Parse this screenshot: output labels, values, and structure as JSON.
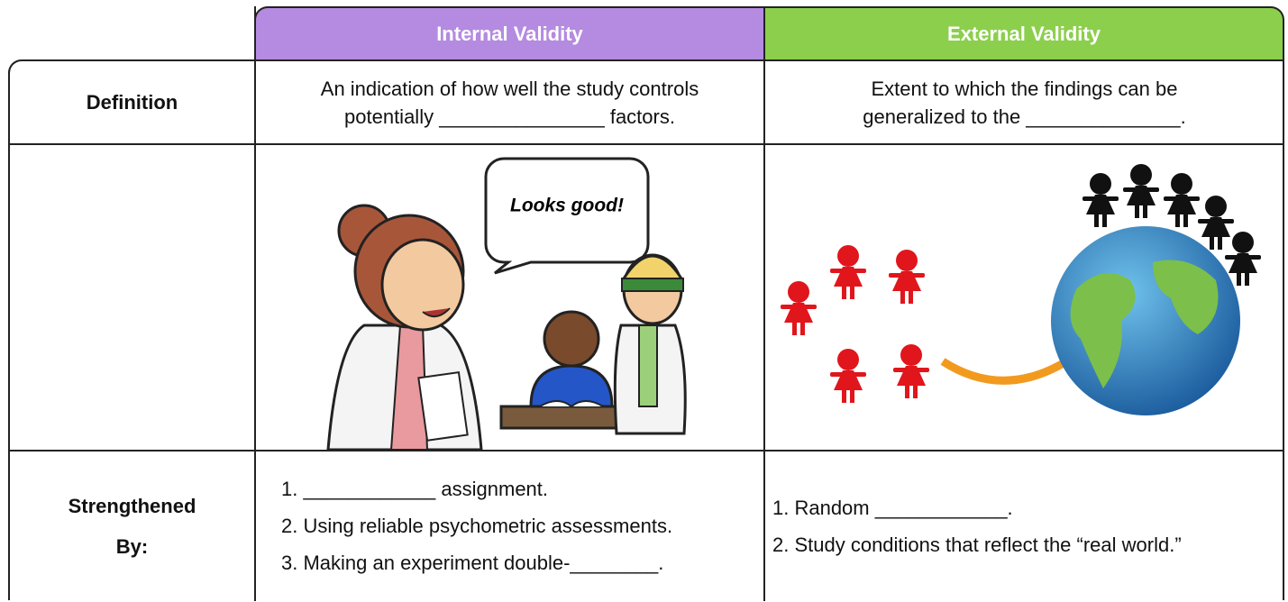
{
  "table": {
    "columns": [
      "Internal Validity",
      "External Validity"
    ],
    "definition": {
      "label": "Definition",
      "internal": [
        "An indication of how well the study controls",
        "potentially _______________ factors."
      ],
      "external": [
        "Extent to which the findings can be",
        "generalized to the ______________."
      ]
    },
    "illustration": {
      "speech_bubble": "Looks good!"
    },
    "strengthened_by": {
      "label": [
        "Strengthened",
        "By:"
      ],
      "internal": [
        "1. ____________ assignment.",
        "2. Using reliable psychometric assessments.",
        "3. Making an experiment double-________."
      ],
      "external": [
        "1. Random ____________.",
        "2. Study conditions that reflect the “real world.”"
      ]
    }
  }
}
